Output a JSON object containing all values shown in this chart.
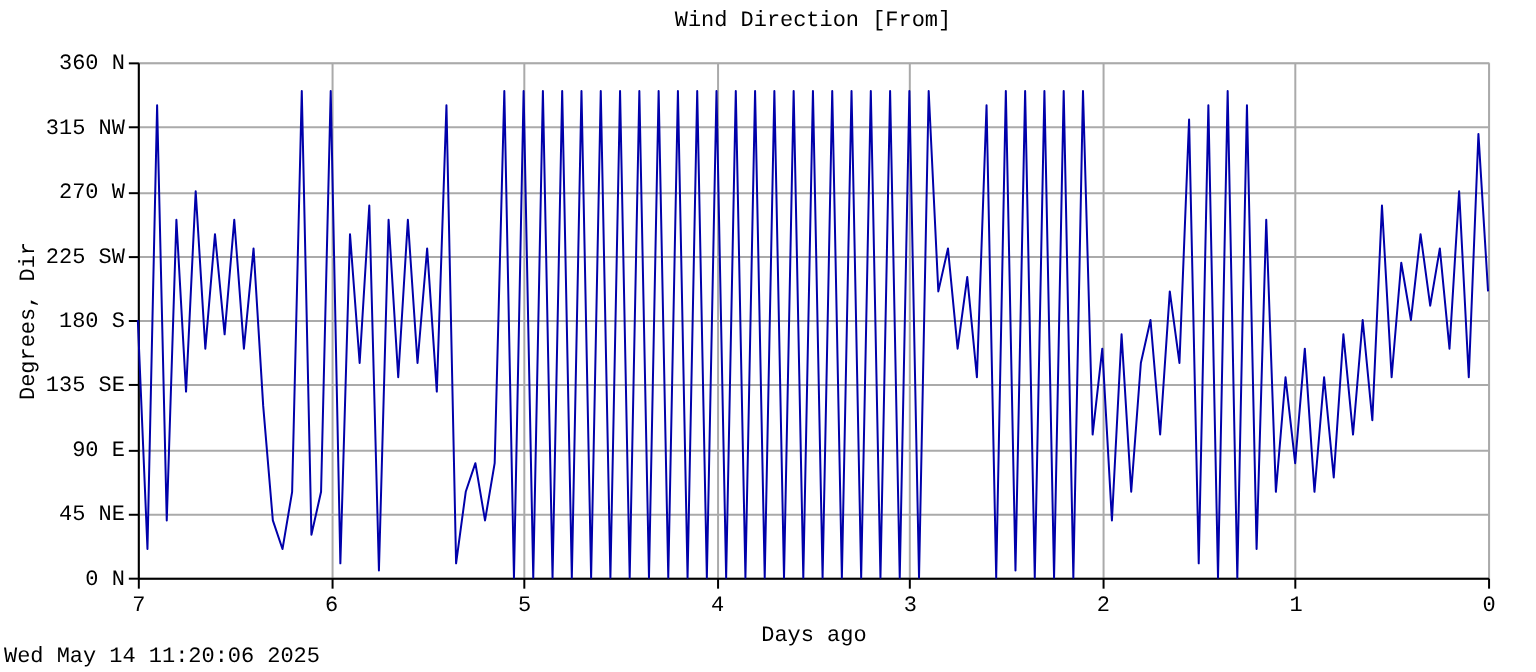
{
  "chart_data": {
    "type": "line",
    "title": "Wind Direction [From]",
    "xlabel": "Days ago",
    "ylabel": "Degrees, Dir",
    "annotations": [
      "Wed May 14 11:20:06 2025"
    ],
    "x": [
      7.0,
      6.95,
      6.9,
      6.85,
      6.8,
      6.75,
      6.7,
      6.65,
      6.6,
      6.55,
      6.5,
      6.45,
      6.4,
      6.35,
      6.3,
      6.25,
      6.2,
      6.15,
      6.1,
      6.05,
      6.0,
      5.95,
      5.9,
      5.85,
      5.8,
      5.75,
      5.7,
      5.65,
      5.6,
      5.55,
      5.5,
      5.45,
      5.4,
      5.35,
      5.3,
      5.25,
      5.2,
      5.15,
      5.1,
      5.05,
      5.0,
      4.95,
      4.9,
      4.85,
      4.8,
      4.75,
      4.7,
      4.65,
      4.6,
      4.55,
      4.5,
      4.45,
      4.4,
      4.35,
      4.3,
      4.25,
      4.2,
      4.15,
      4.1,
      4.05,
      4.0,
      3.95,
      3.9,
      3.85,
      3.8,
      3.75,
      3.7,
      3.65,
      3.6,
      3.55,
      3.5,
      3.45,
      3.4,
      3.35,
      3.3,
      3.25,
      3.2,
      3.15,
      3.1,
      3.05,
      3.0,
      2.95,
      2.9,
      2.85,
      2.8,
      2.75,
      2.7,
      2.65,
      2.6,
      2.55,
      2.5,
      2.45,
      2.4,
      2.35,
      2.3,
      2.25,
      2.2,
      2.15,
      2.1,
      2.05,
      2.0,
      1.95,
      1.9,
      1.85,
      1.8,
      1.75,
      1.7,
      1.65,
      1.6,
      1.55,
      1.5,
      1.45,
      1.4,
      1.35,
      1.3,
      1.25,
      1.2,
      1.15,
      1.1,
      1.05,
      1.0,
      0.95,
      0.9,
      0.85,
      0.8,
      0.75,
      0.7,
      0.65,
      0.6,
      0.55,
      0.5,
      0.45,
      0.4,
      0.35,
      0.3,
      0.25,
      0.2,
      0.15,
      0.1,
      0.05,
      0.0
    ],
    "series": [
      {
        "color": "#0000aa",
        "values": [
          180,
          20,
          330,
          40,
          250,
          130,
          270,
          160,
          240,
          170,
          250,
          160,
          230,
          120,
          40,
          20,
          60,
          340,
          30,
          60,
          340,
          10,
          240,
          150,
          260,
          5,
          250,
          140,
          250,
          150,
          230,
          130,
          330,
          10,
          60,
          80,
          40,
          80,
          340,
          0,
          340,
          0,
          340,
          0,
          340,
          0,
          340,
          0,
          340,
          0,
          340,
          0,
          340,
          0,
          340,
          0,
          340,
          0,
          340,
          0,
          340,
          0,
          340,
          0,
          340,
          0,
          340,
          0,
          340,
          0,
          340,
          0,
          340,
          0,
          340,
          0,
          340,
          0,
          340,
          0,
          340,
          0,
          340,
          200,
          230,
          160,
          210,
          140,
          330,
          0,
          340,
          5,
          340,
          0,
          340,
          0,
          340,
          0,
          340,
          100,
          160,
          40,
          170,
          60,
          150,
          180,
          100,
          200,
          150,
          320,
          10,
          330,
          0,
          340,
          0,
          330,
          20,
          250,
          60,
          140,
          80,
          160,
          60,
          140,
          70,
          170,
          100,
          180,
          110,
          260,
          140,
          220,
          180,
          240,
          190,
          230,
          160,
          270,
          140,
          310,
          200
        ]
      }
    ],
    "xlim": [
      7,
      0
    ],
    "xticks": [
      7,
      6,
      5,
      4,
      3,
      2,
      1,
      0
    ],
    "ylim": [
      0,
      360
    ],
    "yticks": [
      {
        "value": 0,
        "label": "0 N"
      },
      {
        "value": 45,
        "label": "45 NE"
      },
      {
        "value": 90,
        "label": "90 E"
      },
      {
        "value": 135,
        "label": "135 SE"
      },
      {
        "value": 180,
        "label": "180 S"
      },
      {
        "value": 225,
        "label": "225 SW"
      },
      {
        "value": 270,
        "label": "270 W"
      },
      {
        "value": 315,
        "label": "315 NW"
      },
      {
        "value": 360,
        "label": "360 N"
      }
    ],
    "grid": true,
    "line_style": "solid",
    "marker": "none"
  }
}
